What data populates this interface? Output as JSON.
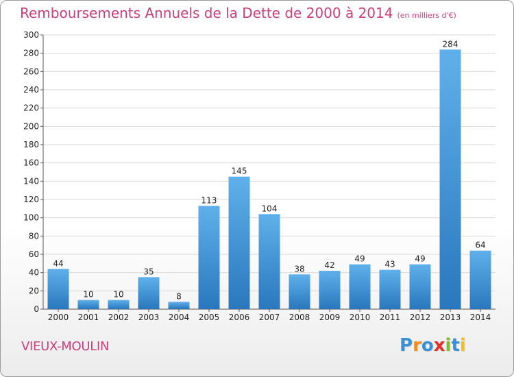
{
  "header": {
    "title": "Remboursements Annuels de la Dette de 2000 à 2014",
    "unit": "(en milliers d'€)"
  },
  "footer": {
    "place": "VIEUX-MOULIN",
    "brand": [
      "P",
      "r",
      "o",
      "x",
      "i",
      "t",
      "i"
    ],
    "brand_colors": [
      "#3a8fd6",
      "#f08a24",
      "#3a8fd6",
      "#e0302c",
      "#7cbf2a",
      "#3a8fd6",
      "#f0c020"
    ]
  },
  "colors": {
    "title": "#c8407e",
    "bar_top": "#5fb0ea",
    "bar_bottom": "#2a77bd",
    "grid": "#d8d8d8"
  },
  "chart_data": {
    "type": "bar",
    "title": "Remboursements Annuels de la Dette de 2000 à 2014",
    "subtitle": "(en milliers d'€)",
    "categories": [
      "2000",
      "2001",
      "2002",
      "2003",
      "2004",
      "2005",
      "2006",
      "2007",
      "2008",
      "2009",
      "2010",
      "2011",
      "2012",
      "2013",
      "2014"
    ],
    "values": [
      44,
      10,
      10,
      35,
      8,
      113,
      145,
      104,
      38,
      42,
      49,
      43,
      49,
      284,
      64
    ],
    "ylim": [
      0,
      300
    ],
    "yticks": [
      0,
      20,
      40,
      60,
      80,
      100,
      120,
      140,
      160,
      180,
      200,
      220,
      240,
      260,
      280,
      300
    ],
    "grid": true,
    "legend": "none"
  }
}
